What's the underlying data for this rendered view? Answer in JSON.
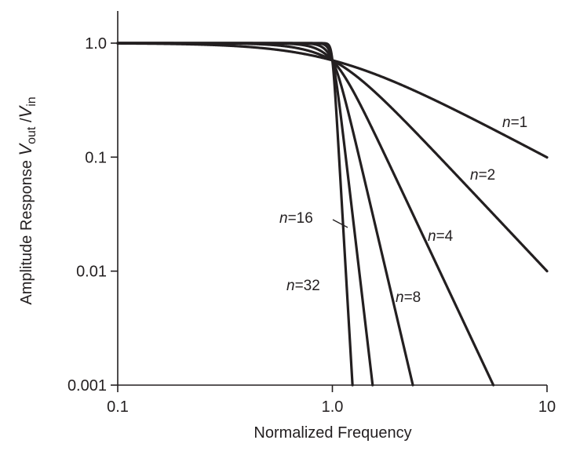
{
  "chart_data": {
    "type": "line",
    "xlabel": "Normalized Frequency",
    "ylabel": {
      "prefix": "Amplitude Response ",
      "v1": "V",
      "v1_sub": "out",
      "slash": " /",
      "v2": "V",
      "v2_sub": "in"
    },
    "x_scale": "log",
    "y_scale": "log",
    "xlim": [
      0.1,
      10
    ],
    "ylim": [
      0.001,
      1.0
    ],
    "x_ticks": [
      {
        "value": 0.1,
        "label": "0.1"
      },
      {
        "value": 1.0,
        "label": "1.0"
      },
      {
        "value": 10,
        "label": "10"
      }
    ],
    "y_ticks": [
      {
        "value": 0.001,
        "label": "0.001"
      },
      {
        "value": 0.01,
        "label": "0.01"
      },
      {
        "value": 0.1,
        "label": "0.1"
      },
      {
        "value": 1.0,
        "label": "1.0"
      }
    ],
    "grid": false,
    "legend": "none",
    "line_color": "#231f20",
    "series": [
      {
        "name": "n=1",
        "order": 1
      },
      {
        "name": "n=2",
        "order": 2
      },
      {
        "name": "n=4",
        "order": 4
      },
      {
        "name": "n=8",
        "order": 8
      },
      {
        "name": "n=16",
        "order": 16
      },
      {
        "name": "n=32",
        "order": 32
      }
    ],
    "series_labels": [
      {
        "n": "n",
        "eq": "=1"
      },
      {
        "n": "n",
        "eq": "=2"
      },
      {
        "n": "n",
        "eq": "=4"
      },
      {
        "n": "n",
        "eq": "=8"
      },
      {
        "n": "n",
        "eq": "=16"
      },
      {
        "n": "n",
        "eq": "=32"
      }
    ]
  }
}
